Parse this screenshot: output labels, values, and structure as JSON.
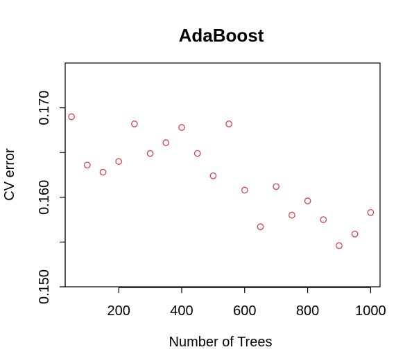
{
  "chart_data": {
    "type": "scatter",
    "title": "AdaBoost",
    "xlabel": "Number of Trees",
    "ylabel": "CV error",
    "xlim": [
      30,
      1030
    ],
    "ylim": [
      0.15,
      0.175
    ],
    "x_ticks": [
      200,
      400,
      600,
      800,
      1000
    ],
    "x_tick_labels": [
      "200",
      "400",
      "600",
      "800",
      "1000"
    ],
    "y_ticks": [
      0.15,
      0.155,
      0.16,
      0.165,
      0.17
    ],
    "y_tick_labels": [
      "0.150",
      "",
      "0.160",
      "",
      "0.170"
    ],
    "marker_color": "#d6404e",
    "grid": false,
    "points": [
      {
        "x": 50,
        "y": 0.169
      },
      {
        "x": 100,
        "y": 0.1636
      },
      {
        "x": 150,
        "y": 0.1628
      },
      {
        "x": 200,
        "y": 0.164
      },
      {
        "x": 250,
        "y": 0.1682
      },
      {
        "x": 300,
        "y": 0.1649
      },
      {
        "x": 350,
        "y": 0.1661
      },
      {
        "x": 400,
        "y": 0.1678
      },
      {
        "x": 450,
        "y": 0.1649
      },
      {
        "x": 500,
        "y": 0.1624
      },
      {
        "x": 550,
        "y": 0.1682
      },
      {
        "x": 600,
        "y": 0.1608
      },
      {
        "x": 650,
        "y": 0.1567
      },
      {
        "x": 700,
        "y": 0.1612
      },
      {
        "x": 750,
        "y": 0.158
      },
      {
        "x": 800,
        "y": 0.1596
      },
      {
        "x": 850,
        "y": 0.1575
      },
      {
        "x": 900,
        "y": 0.1546
      },
      {
        "x": 950,
        "y": 0.1559
      },
      {
        "x": 1000,
        "y": 0.1583
      }
    ]
  }
}
